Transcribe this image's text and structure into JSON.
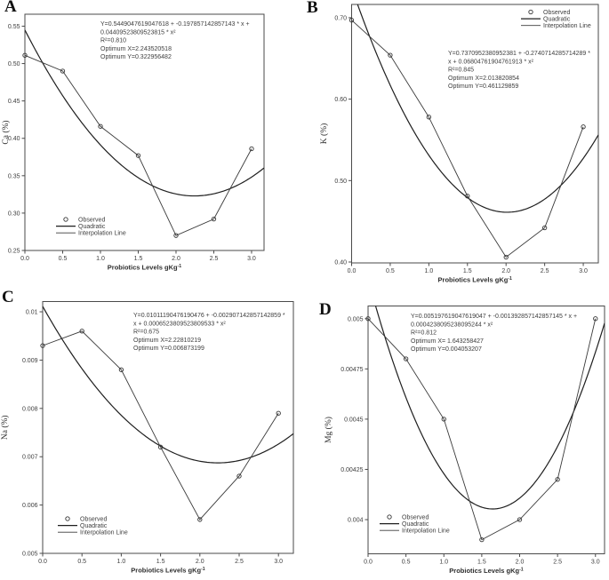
{
  "colors": {
    "background": "#ffffff",
    "text": "#3d3d3d",
    "axis": "#4a4a4a",
    "quadratic_line": "#1f1f1f",
    "interpolation_line": "#3a3a3a",
    "marker": "#333333"
  },
  "chart_data": [
    {
      "panel_label": "A",
      "type": "scatter",
      "ylabel": "Ca (%)",
      "xlabel_text": "Probiotics Levels gKg",
      "xlabel_sup": "-1",
      "x": [
        0.0,
        0.5,
        1.0,
        1.5,
        2.0,
        2.5,
        3.0
      ],
      "observed": [
        0.511,
        0.49,
        0.416,
        0.377,
        0.27,
        0.292,
        0.386
      ],
      "quadratic": {
        "a0": 0.5449047619047618,
        "a1": -0.197857142857143,
        "a2": 0.04409523809523815
      },
      "annotation": {
        "equation_lines": [
          "Y=0.5449047619047618 + -0.197857142857143 * x +",
          "0.04409523809523815 * x²"
        ],
        "r_squared": "R²=0.810",
        "optimum_x": "Optimum X=2.243520518",
        "optimum_y": "Optimum Y=0.322956482"
      },
      "legend": [
        "Observed",
        "Quadratic",
        "Interpolation Line"
      ],
      "legend_position": "bottom-left",
      "xticks": {
        "values": [
          0,
          0.5,
          1,
          1.5,
          2,
          2.5,
          3
        ],
        "labels": [
          "0.0",
          "0.5",
          "1.0",
          "1.5",
          "2.0",
          "2.5",
          "3.0"
        ]
      },
      "yticks": {
        "values": [
          0.25,
          0.3,
          0.35,
          0.4,
          0.45,
          0.5,
          0.55
        ],
        "labels": [
          "0.25",
          "0.30",
          "0.35",
          "0.40",
          "0.45",
          "0.50",
          "0.55"
        ]
      },
      "xlim": [
        0,
        3.165
      ],
      "ylim": [
        0.25,
        0.566
      ],
      "grid": false
    },
    {
      "panel_label": "B",
      "type": "scatter",
      "ylabel": "K (%)",
      "xlabel_text": "Probiotics Levels gKg",
      "xlabel_sup": "-1",
      "x": [
        0.0,
        0.5,
        1.0,
        1.5,
        2.0,
        2.5,
        3.0
      ],
      "observed": [
        0.697,
        0.654,
        0.578,
        0.481,
        0.406,
        0.442,
        0.566
      ],
      "quadratic": {
        "a0": 0.7370952380952381,
        "a1": -0.2740714285714289,
        "a2": 0.06804761904761913
      },
      "annotation": {
        "equation_lines": [
          "Y=0.7370952380952381 + -0.2740714285714289 *",
          "x + 0.06804761904761913 * x²"
        ],
        "r_squared": "R²=0.845",
        "optimum_x": "Optimum X=2.013820854",
        "optimum_y": "Optimum Y=0.461129859"
      },
      "legend": [
        "Observed",
        "Quadratic",
        "Interpolation Line"
      ],
      "legend_position": "top-right",
      "xticks": {
        "values": [
          0,
          0.5,
          1,
          1.5,
          2,
          2.5,
          3
        ],
        "labels": [
          "0.0",
          "0.5",
          "1.0",
          "1.5",
          "2.0",
          "2.5",
          "3.0"
        ]
      },
      "yticks": {
        "values": [
          0.4,
          0.5,
          0.6,
          0.7
        ],
        "labels": [
          "0.40",
          "0.50",
          "0.60",
          "0.70"
        ]
      },
      "xlim": [
        0,
        3.195
      ],
      "ylim": [
        0.3989,
        0.7163
      ],
      "grid": false
    },
    {
      "panel_label": "C",
      "type": "scatter",
      "ylabel": "Na (%)",
      "xlabel_text": "Probiotics Levels gKg",
      "xlabel_sup": "-1",
      "x": [
        0.0,
        0.5,
        1.0,
        1.5,
        2.0,
        2.5,
        3.0
      ],
      "observed": [
        0.0093,
        0.0096,
        0.0088,
        0.0072,
        0.0057,
        0.0066,
        0.0079
      ],
      "quadratic": {
        "a0": 0.01011190476190476,
        "a1": -0.002907142857142859,
        "a2": 0.0006523809523809533
      },
      "annotation": {
        "equation_lines": [
          "Y=0.01011190476190476 + -0.002907142857142859 *",
          "x + 0.0006523809523809533 * x²"
        ],
        "r_squared": "R²=0.675",
        "optimum_x": "Optimum X=2.22810219",
        "optimum_y": "Optimum Y=0.006873199"
      },
      "legend": [
        "Observed",
        "Quadratic",
        "Interpolation Line"
      ],
      "legend_position": "bottom-left",
      "xticks": {
        "values": [
          0,
          0.5,
          1,
          1.5,
          2,
          2.5,
          3
        ],
        "labels": [
          "0.0",
          "0.5",
          "1.0",
          "1.5",
          "2.0",
          "2.5",
          "3.0"
        ]
      },
      "yticks": {
        "values": [
          0.005,
          0.006,
          0.007,
          0.008,
          0.009,
          0.01
        ],
        "labels": [
          "0.005",
          "0.006",
          "0.007",
          "0.008",
          "0.009",
          "0.01"
        ]
      },
      "xlim": [
        0,
        3.19
      ],
      "ylim": [
        0.005,
        0.010212
      ],
      "grid": false
    },
    {
      "panel_label": "D",
      "type": "scatter",
      "ylabel": "Mg (%)",
      "xlabel_text": "Probiotics Levels gKg",
      "xlabel_sup": "-1",
      "x": [
        0.0,
        0.5,
        1.0,
        1.5,
        2.0,
        2.5,
        3.0
      ],
      "observed": [
        0.005,
        0.0048,
        0.0045,
        0.0039,
        0.004,
        0.0042,
        0.005
      ],
      "quadratic": {
        "a0": 0.005197619047619047,
        "a1": -0.001392857142857145,
        "a2": 0.0004238095238095244
      },
      "annotation": {
        "equation_lines": [
          "Y=0.005197619047619047 + -0.001392857142857145 * x +",
          "0.0004238095238095244 * x²"
        ],
        "r_squared": "R²=0.812",
        "optimum_x": "Optimum X= 1.643258427",
        "optimum_y": "Optimum Y=0.004053207"
      },
      "legend": [
        "Observed",
        "Quadratic",
        "Interpolation Line"
      ],
      "legend_position": "bottom-left",
      "xticks": {
        "values": [
          0,
          0.5,
          1,
          1.5,
          2,
          2.5,
          3
        ],
        "labels": [
          "0.0",
          "0.5",
          "1.0",
          "1.5",
          "2.0",
          "2.5",
          "3.0"
        ]
      },
      "yticks": {
        "values": [
          0.004,
          0.00425,
          0.0045,
          0.00475,
          0.005
        ],
        "labels": [
          "0.004",
          "0.00425",
          "0.0045",
          "0.00475",
          "0.005"
        ]
      },
      "xlim": [
        0,
        3.12
      ],
      "ylim": [
        0.00383,
        0.005063
      ],
      "grid": false
    }
  ]
}
